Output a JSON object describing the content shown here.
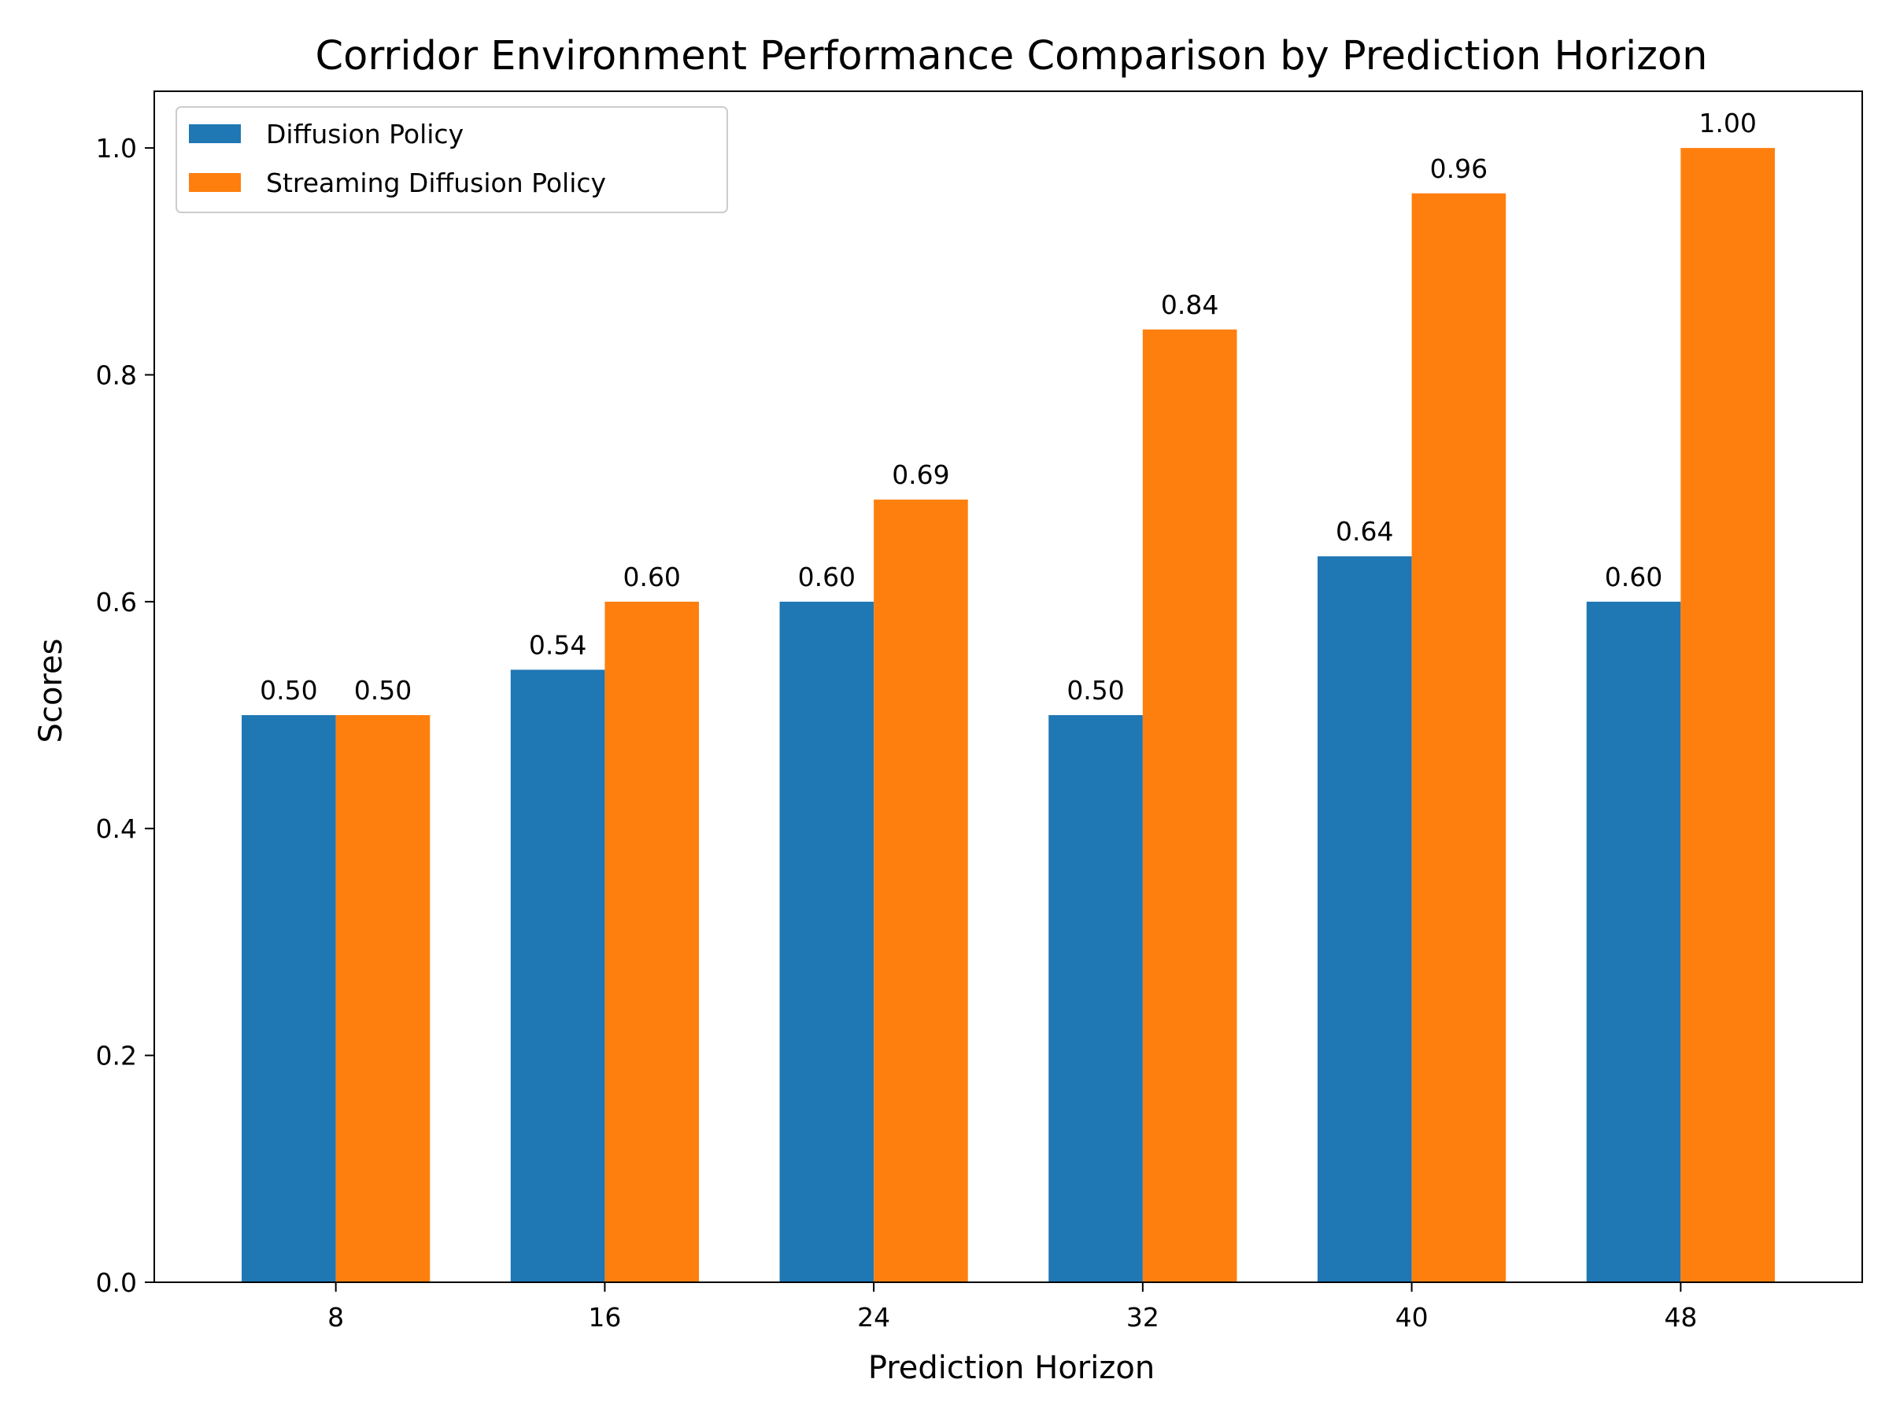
{
  "chart_data": {
    "type": "bar",
    "title": "Corridor Environment Performance Comparison by Prediction Horizon",
    "xlabel": "Prediction Horizon",
    "ylabel": "Scores",
    "categories": [
      "8",
      "16",
      "24",
      "32",
      "40",
      "48"
    ],
    "series": [
      {
        "name": "Diffusion Policy",
        "color": "#1f77b4",
        "values": [
          0.5,
          0.54,
          0.6,
          0.5,
          0.64,
          0.6
        ],
        "labels": [
          "0.50",
          "0.54",
          "0.60",
          "0.50",
          "0.64",
          "0.60"
        ]
      },
      {
        "name": "Streaming Diffusion Policy",
        "color": "#ff7f0e",
        "values": [
          0.5,
          0.6,
          0.69,
          0.84,
          0.96,
          1.0
        ],
        "labels": [
          "0.50",
          "0.60",
          "0.69",
          "0.84",
          "0.96",
          "1.00"
        ]
      }
    ],
    "ylim": [
      0,
      1.05
    ],
    "yticks": [
      "0.0",
      "0.2",
      "0.4",
      "0.6",
      "0.8",
      "1.0"
    ],
    "grid": false,
    "legend_position": "top-left"
  }
}
